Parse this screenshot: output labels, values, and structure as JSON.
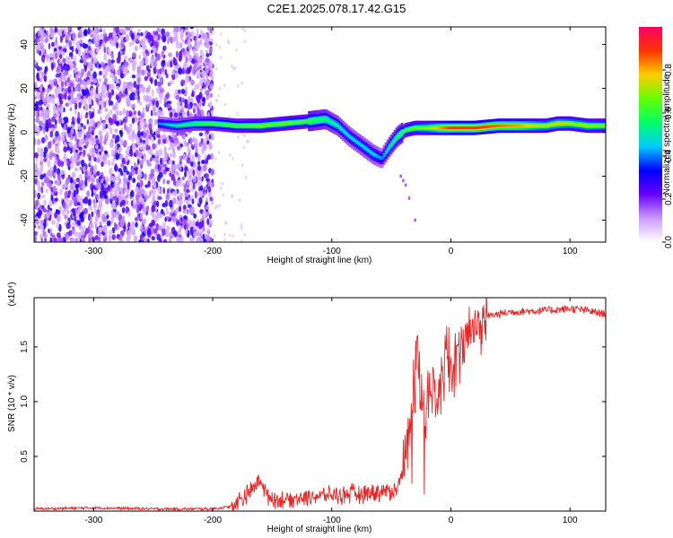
{
  "title": "C2E1.2025.078.17.42.G15",
  "chart_data": [
    {
      "type": "heatmap",
      "xlabel": "Height of straight line (km)",
      "ylabel": "Frequency (Hz)",
      "xlim": [
        -350,
        130
      ],
      "ylim": [
        -50,
        48
      ],
      "xticks": [
        -300,
        -200,
        -100,
        0,
        100
      ],
      "yticks": [
        -40,
        -20,
        0,
        20,
        40
      ],
      "colorbar": {
        "label": "Normalized spectral amplitude",
        "range": [
          0,
          1
        ],
        "ticks": [
          0.0,
          0.2,
          0.4,
          0.6,
          0.8
        ],
        "colors": [
          "#ffffff",
          "#cc99ff",
          "#6600ff",
          "#0000ff",
          "#00ccff",
          "#00ff66",
          "#66ff00",
          "#ffcc00",
          "#ff3300",
          "#ff0066"
        ]
      },
      "noise_region_x": [
        -350,
        -200
      ],
      "ridge": {
        "x": [
          -245,
          -230,
          -215,
          -200,
          -180,
          -160,
          -140,
          -120,
          -105,
          -95,
          -85,
          -75,
          -65,
          -58,
          -52,
          -45,
          -38,
          -30,
          -20,
          -10,
          0,
          20,
          40,
          60,
          80,
          90,
          100,
          115,
          130
        ],
        "frequency": [
          4,
          3,
          4,
          4,
          3,
          3,
          4,
          5,
          6,
          3,
          -2,
          -6,
          -10,
          -12,
          -7,
          -2,
          1,
          2,
          2,
          2,
          2,
          2,
          3,
          3,
          3,
          4,
          4,
          3,
          3
        ],
        "amplitude": [
          0.4,
          0.5,
          0.55,
          0.6,
          0.6,
          0.65,
          0.65,
          0.6,
          0.55,
          0.5,
          0.45,
          0.45,
          0.45,
          0.4,
          0.5,
          0.55,
          0.6,
          0.65,
          0.7,
          0.8,
          0.9,
          0.9,
          0.85,
          0.8,
          0.7,
          0.75,
          0.7,
          0.7,
          0.65
        ]
      }
    },
    {
      "type": "line",
      "xlabel": "Height of straight line (km)",
      "ylabel": "SNR (10 * v/v)",
      "yscale_label": "(x10⁴)",
      "xlim": [
        -350,
        130
      ],
      "ylim": [
        0,
        1.95
      ],
      "xticks": [
        -300,
        -200,
        -100,
        0,
        100
      ],
      "yticks": [
        0.5,
        1.0,
        1.5
      ],
      "ytick_labels": [
        "0.5",
        "1.0",
        "1.5"
      ],
      "series": [
        {
          "color": "#ee2222",
          "x": [
            -350,
            -300,
            -250,
            -200,
            -185,
            -175,
            -168,
            -160,
            -155,
            -145,
            -130,
            -110,
            -90,
            -70,
            -55,
            -45,
            -38,
            -32,
            -28,
            -24,
            -20,
            -15,
            -10,
            -5,
            0,
            5,
            10,
            20,
            30,
            50,
            70,
            90,
            100,
            110,
            120,
            130
          ],
          "values": [
            0.02,
            0.03,
            0.02,
            0.02,
            0.04,
            0.12,
            0.18,
            0.3,
            0.15,
            0.1,
            0.12,
            0.14,
            0.15,
            0.17,
            0.18,
            0.2,
            0.5,
            1.1,
            1.4,
            0.9,
            1.0,
            1.2,
            1.15,
            1.3,
            1.4,
            1.45,
            1.55,
            1.68,
            1.78,
            1.82,
            1.83,
            1.84,
            1.85,
            1.84,
            1.82,
            1.8
          ]
        }
      ]
    }
  ]
}
